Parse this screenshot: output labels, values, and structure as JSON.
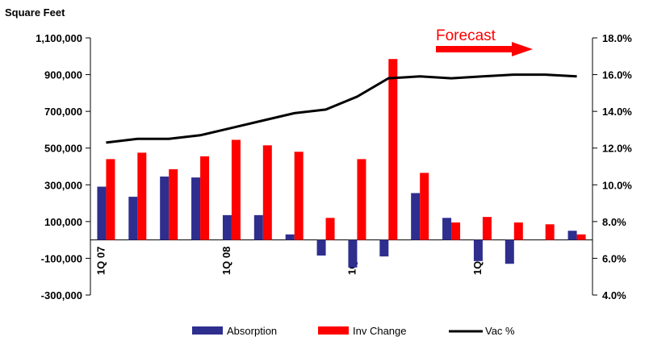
{
  "chart_data": {
    "type": "bar",
    "units_label": "Square Feet",
    "annotation": "Forecast",
    "colors": {
      "absorption": "#2e2e8f",
      "inv_change": "#ff0000",
      "vacancy": "#000000",
      "forecast": "#ff0000"
    },
    "y_left": {
      "min": -300000,
      "max": 1100000,
      "ticks": [
        "1,100,000",
        "900,000",
        "700,000",
        "500,000",
        "300,000",
        "100,000",
        "-100,000",
        "-300,000"
      ],
      "tick_values": [
        1100000,
        900000,
        700000,
        500000,
        300000,
        100000,
        -100000,
        -300000
      ]
    },
    "y_right": {
      "min": 4.0,
      "max": 18.0,
      "ticks": [
        "18.0%",
        "16.0%",
        "14.0%",
        "12.0%",
        "10.0%",
        "8.0%",
        "6.0%",
        "4.0%"
      ],
      "tick_values": [
        18,
        16,
        14,
        12,
        10,
        8,
        6,
        4
      ]
    },
    "x_labels": [
      {
        "label": "1Q 07",
        "index": 0
      },
      {
        "label": "1Q 08",
        "index": 4
      },
      {
        "label": "1Q 09",
        "index": 8
      },
      {
        "label": "1Q 10",
        "index": 12
      }
    ],
    "num_periods": 16,
    "series": [
      {
        "name": "Absorption",
        "kind": "bar",
        "values": [
          290000,
          235000,
          345000,
          340000,
          135000,
          135000,
          30000,
          -85000,
          -150000,
          -90000,
          255000,
          120000,
          -115000,
          -130000,
          0,
          50000
        ]
      },
      {
        "name": "Inv Change",
        "kind": "bar",
        "values": [
          440000,
          475000,
          385000,
          455000,
          545000,
          515000,
          480000,
          120000,
          440000,
          985000,
          365000,
          95000,
          125000,
          95000,
          85000,
          30000
        ]
      },
      {
        "name": "Vac %",
        "kind": "line",
        "axis": "right",
        "values": [
          12.3,
          12.5,
          12.5,
          12.7,
          13.1,
          13.5,
          13.9,
          14.1,
          14.8,
          15.8,
          15.9,
          15.8,
          15.9,
          16.0,
          16.0,
          15.9
        ]
      }
    ],
    "legend": {
      "position": "bottom",
      "items": [
        "Absorption",
        "Inv Change",
        "Vac %"
      ]
    }
  }
}
